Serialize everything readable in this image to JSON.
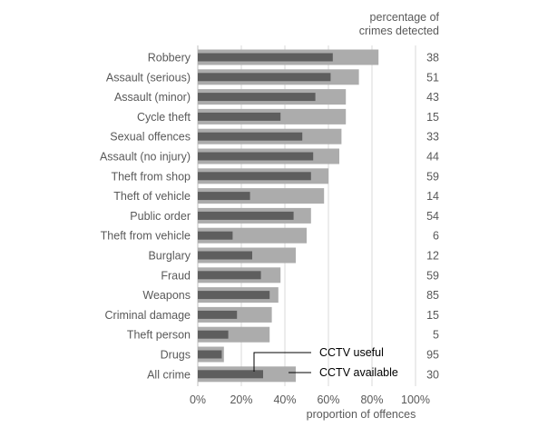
{
  "chart_data": {
    "type": "bar",
    "orientation": "horizontal",
    "categories": [
      "Robbery",
      "Assault (serious)",
      "Assault (minor)",
      "Cycle theft",
      "Sexual offences",
      "Assault (no injury)",
      "Theft from shop",
      "Theft of vehicle",
      "Public order",
      "Theft from vehicle",
      "Burglary",
      "Fraud",
      "Weapons",
      "Criminal damage",
      "Theft person",
      "Drugs",
      "All crime"
    ],
    "series": [
      {
        "name": "CCTV available",
        "values": [
          83,
          74,
          68,
          68,
          66,
          65,
          60,
          58,
          52,
          50,
          45,
          38,
          37,
          34,
          33,
          12,
          45
        ],
        "color": "#acacac"
      },
      {
        "name": "CCTV useful",
        "values": [
          62,
          61,
          54,
          38,
          48,
          53,
          52,
          24,
          44,
          16,
          25,
          29,
          33,
          18,
          14,
          11,
          30
        ],
        "color": "#5e5e5e"
      }
    ],
    "detected_header": [
      "percentage of",
      "crimes detected"
    ],
    "detected_values": [
      "38",
      "51",
      "43",
      "15",
      "33",
      "44",
      "59",
      "14",
      "54",
      "6",
      "12",
      "59",
      "85",
      "15",
      "5",
      "95",
      "30"
    ],
    "xlabel": "proportion of offences",
    "xlim": [
      0,
      100
    ],
    "x_ticks": [
      "0%",
      "20%",
      "40%",
      "60%",
      "80%",
      "100%"
    ],
    "grid": "vertical",
    "legend": "callout labels inside chart, bottom-right",
    "colors": {
      "available": "#acacac",
      "useful": "#5e5e5e",
      "grid": "#d9d9d9",
      "text": "#595959",
      "callout": "#000000"
    }
  }
}
